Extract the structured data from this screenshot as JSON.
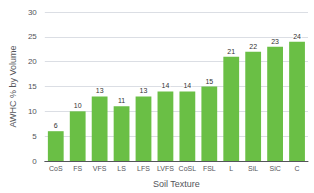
{
  "chart_data": {
    "type": "bar",
    "categories": [
      "CoS",
      "FS",
      "VFS",
      "LS",
      "LFS",
      "LVFS",
      "CoSL",
      "FSL",
      "L",
      "SiL",
      "SiC",
      "C"
    ],
    "values": [
      6,
      10,
      13,
      11,
      13,
      14,
      14,
      15,
      21,
      22,
      23,
      24
    ],
    "color": "#6abf45",
    "xlabel": "Soil Texture",
    "ylabel": "AWHC % by Volume",
    "ylim": [
      0,
      30
    ],
    "yticks": [
      0,
      5,
      10,
      15,
      20,
      25,
      30
    ],
    "grid": true,
    "data_labels": true
  }
}
